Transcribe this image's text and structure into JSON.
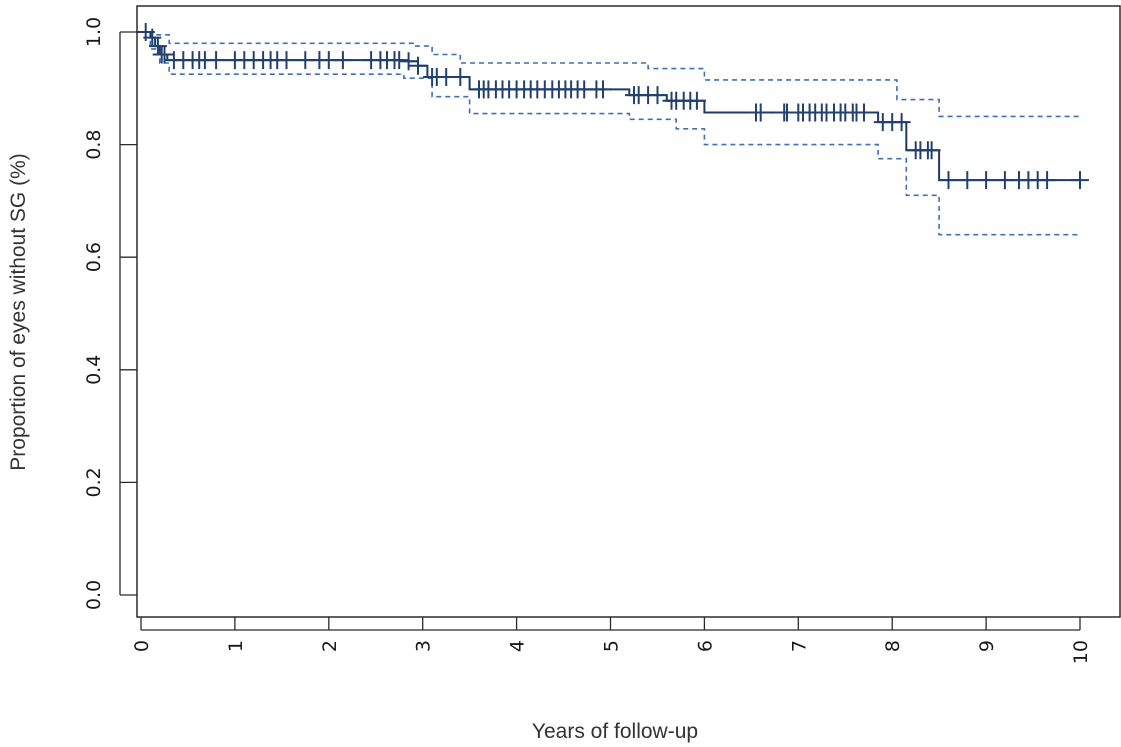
{
  "chart_data": {
    "type": "line",
    "title": "",
    "xlabel": "Years of follow-up",
    "ylabel": "Proportion of eyes without SG (%)",
    "xlim": [
      0,
      10
    ],
    "ylim": [
      0,
      1
    ],
    "x_ticks": [
      "0",
      "1",
      "2",
      "3",
      "4",
      "5",
      "6",
      "7",
      "8",
      "9",
      "10"
    ],
    "y_ticks": [
      "0.0",
      "0.2",
      "0.4",
      "0.6",
      "0.8",
      "1.0"
    ],
    "grid": false,
    "legend": "none",
    "series": [
      {
        "role": "estimate",
        "style": "step-solid",
        "color": "#1f3864",
        "x": [
          0,
          0.1,
          0.15,
          0.2,
          0.28,
          2.8,
          2.95,
          3.05,
          3.5,
          5.2,
          5.6,
          6.0,
          7.85,
          8.15,
          8.5,
          10.0
        ],
        "y": [
          1.0,
          0.99,
          0.975,
          0.96,
          0.95,
          0.948,
          0.94,
          0.92,
          0.898,
          0.888,
          0.878,
          0.857,
          0.84,
          0.79,
          0.737,
          0.737
        ]
      },
      {
        "role": "upper-ci",
        "style": "step-dashed",
        "color": "#3f6fb5",
        "x": [
          0,
          0.15,
          0.3,
          2.9,
          3.1,
          3.4,
          5.4,
          6.0,
          8.05,
          8.5,
          10.0
        ],
        "y": [
          1.0,
          0.995,
          0.98,
          0.975,
          0.96,
          0.945,
          0.935,
          0.915,
          0.88,
          0.85,
          0.85
        ]
      },
      {
        "role": "lower-ci",
        "style": "step-dashed",
        "color": "#3f6fb5",
        "x": [
          0,
          0.1,
          0.2,
          0.3,
          2.8,
          3.1,
          3.5,
          5.2,
          5.7,
          6.0,
          7.85,
          8.15,
          8.5,
          10.0
        ],
        "y": [
          1.0,
          0.97,
          0.945,
          0.925,
          0.918,
          0.885,
          0.855,
          0.845,
          0.828,
          0.8,
          0.775,
          0.71,
          0.64,
          0.64
        ]
      }
    ],
    "censor_marks": [
      [
        0.05,
        1.0
      ],
      [
        0.12,
        0.99
      ],
      [
        0.18,
        0.975
      ],
      [
        0.22,
        0.96
      ],
      [
        0.25,
        0.96
      ],
      [
        0.35,
        0.95
      ],
      [
        0.45,
        0.95
      ],
      [
        0.55,
        0.95
      ],
      [
        0.62,
        0.95
      ],
      [
        0.68,
        0.95
      ],
      [
        0.8,
        0.95
      ],
      [
        1.0,
        0.95
      ],
      [
        1.1,
        0.95
      ],
      [
        1.2,
        0.95
      ],
      [
        1.3,
        0.95
      ],
      [
        1.38,
        0.95
      ],
      [
        1.45,
        0.95
      ],
      [
        1.55,
        0.95
      ],
      [
        1.75,
        0.95
      ],
      [
        1.9,
        0.95
      ],
      [
        2.0,
        0.95
      ],
      [
        2.15,
        0.95
      ],
      [
        2.45,
        0.95
      ],
      [
        2.55,
        0.95
      ],
      [
        2.62,
        0.95
      ],
      [
        2.7,
        0.95
      ],
      [
        2.75,
        0.95
      ],
      [
        2.85,
        0.948
      ],
      [
        2.95,
        0.94
      ],
      [
        3.1,
        0.92
      ],
      [
        3.15,
        0.92
      ],
      [
        3.25,
        0.92
      ],
      [
        3.4,
        0.92
      ],
      [
        3.6,
        0.898
      ],
      [
        3.65,
        0.898
      ],
      [
        3.7,
        0.898
      ],
      [
        3.78,
        0.898
      ],
      [
        3.85,
        0.898
      ],
      [
        3.92,
        0.898
      ],
      [
        4.0,
        0.898
      ],
      [
        4.08,
        0.898
      ],
      [
        4.15,
        0.898
      ],
      [
        4.22,
        0.898
      ],
      [
        4.3,
        0.898
      ],
      [
        4.38,
        0.898
      ],
      [
        4.45,
        0.898
      ],
      [
        4.52,
        0.898
      ],
      [
        4.58,
        0.898
      ],
      [
        4.65,
        0.898
      ],
      [
        4.72,
        0.898
      ],
      [
        4.85,
        0.898
      ],
      [
        4.92,
        0.898
      ],
      [
        5.25,
        0.888
      ],
      [
        5.3,
        0.888
      ],
      [
        5.4,
        0.888
      ],
      [
        5.5,
        0.888
      ],
      [
        5.65,
        0.878
      ],
      [
        5.7,
        0.878
      ],
      [
        5.78,
        0.878
      ],
      [
        5.85,
        0.878
      ],
      [
        5.92,
        0.878
      ],
      [
        6.55,
        0.857
      ],
      [
        6.6,
        0.857
      ],
      [
        6.85,
        0.857
      ],
      [
        6.88,
        0.857
      ],
      [
        7.0,
        0.857
      ],
      [
        7.05,
        0.857
      ],
      [
        7.12,
        0.857
      ],
      [
        7.18,
        0.857
      ],
      [
        7.25,
        0.857
      ],
      [
        7.3,
        0.857
      ],
      [
        7.38,
        0.857
      ],
      [
        7.45,
        0.857
      ],
      [
        7.5,
        0.857
      ],
      [
        7.58,
        0.857
      ],
      [
        7.62,
        0.857
      ],
      [
        7.7,
        0.857
      ],
      [
        7.9,
        0.84
      ],
      [
        8.0,
        0.84
      ],
      [
        8.1,
        0.84
      ],
      [
        8.25,
        0.79
      ],
      [
        8.3,
        0.79
      ],
      [
        8.38,
        0.79
      ],
      [
        8.42,
        0.79
      ],
      [
        8.6,
        0.737
      ],
      [
        8.8,
        0.737
      ],
      [
        9.0,
        0.737
      ],
      [
        9.2,
        0.737
      ],
      [
        9.35,
        0.737
      ],
      [
        9.45,
        0.737
      ],
      [
        9.55,
        0.737
      ],
      [
        9.65,
        0.737
      ],
      [
        10.0,
        0.737
      ]
    ]
  }
}
